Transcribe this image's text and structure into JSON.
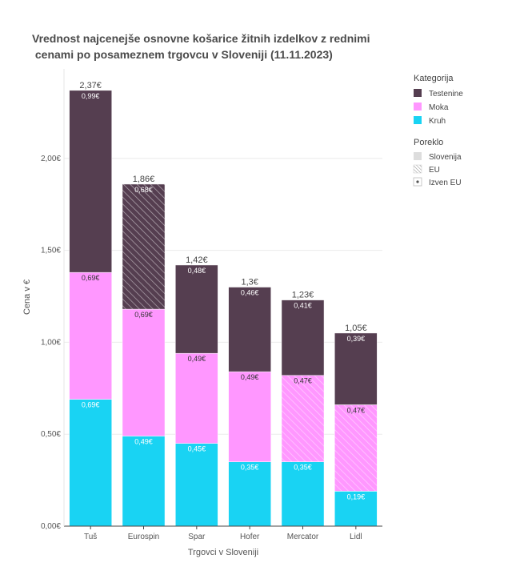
{
  "chart_data": {
    "type": "bar",
    "stacked": true,
    "title_line1": "Vrednost najcenejše osnovne košarice žitnih izdelkov z rednimi",
    "title_line2": " cenami po posameznem trgovcu v Sloveniji (11.11.2023)",
    "xlabel": "Trgovci v Sloveniji",
    "ylabel": "Cena v €",
    "ylim": [
      0,
      2.48
    ],
    "yticks": [
      {
        "value": 0,
        "label": "0,00€"
      },
      {
        "value": 0.5,
        "label": "0,50€"
      },
      {
        "value": 1.0,
        "label": "1,00€"
      },
      {
        "value": 1.5,
        "label": "1,50€"
      },
      {
        "value": 2.0,
        "label": "2,00€"
      }
    ],
    "grid": true,
    "legend_placement": "right",
    "categories": [
      "Tuš",
      "Eurospin",
      "Spar",
      "Hofer",
      "Mercator",
      "Lidl"
    ],
    "totals": [
      "2,37€",
      "1,86€",
      "1,42€",
      "1,3€",
      "1,23€",
      "1,05€"
    ],
    "series": [
      {
        "name": "Kruh",
        "color": "#19d3f3",
        "values": [
          0.69,
          0.49,
          0.45,
          0.35,
          0.35,
          0.19
        ],
        "labels": [
          "0,69€",
          "0,49€",
          "0,45€",
          "0,35€",
          "0,35€",
          "0,19€"
        ],
        "origin": [
          "Slovenija",
          "Slovenija",
          "Slovenija",
          "Slovenija",
          "Slovenija",
          "Slovenija"
        ]
      },
      {
        "name": "Moka",
        "color": "#ff97ff",
        "values": [
          0.69,
          0.69,
          0.49,
          0.49,
          0.47,
          0.47
        ],
        "labels": [
          "0,69€",
          "0,69€",
          "0,49€",
          "0,49€",
          "0,47€",
          "0,47€"
        ],
        "origin": [
          "Slovenija",
          "Slovenija",
          "Slovenija",
          "Slovenija",
          "EU",
          "EU"
        ]
      },
      {
        "name": "Testenine",
        "color": "#553e50",
        "values": [
          0.99,
          0.68,
          0.48,
          0.46,
          0.41,
          0.39
        ],
        "labels": [
          "0,99€",
          "0,68€",
          "0,48€",
          "0,46€",
          "0,41€",
          "0,39€"
        ],
        "origin": [
          "Slovenija",
          "EU",
          "Slovenija",
          "Slovenija",
          "Slovenija",
          "Slovenija"
        ]
      }
    ],
    "legend": {
      "category_title": "Kategorija",
      "categories": [
        "Testenine",
        "Moka",
        "Kruh"
      ],
      "origin_title": "Poreklo",
      "origins": [
        "Slovenija",
        "EU",
        "Izven EU"
      ]
    }
  }
}
